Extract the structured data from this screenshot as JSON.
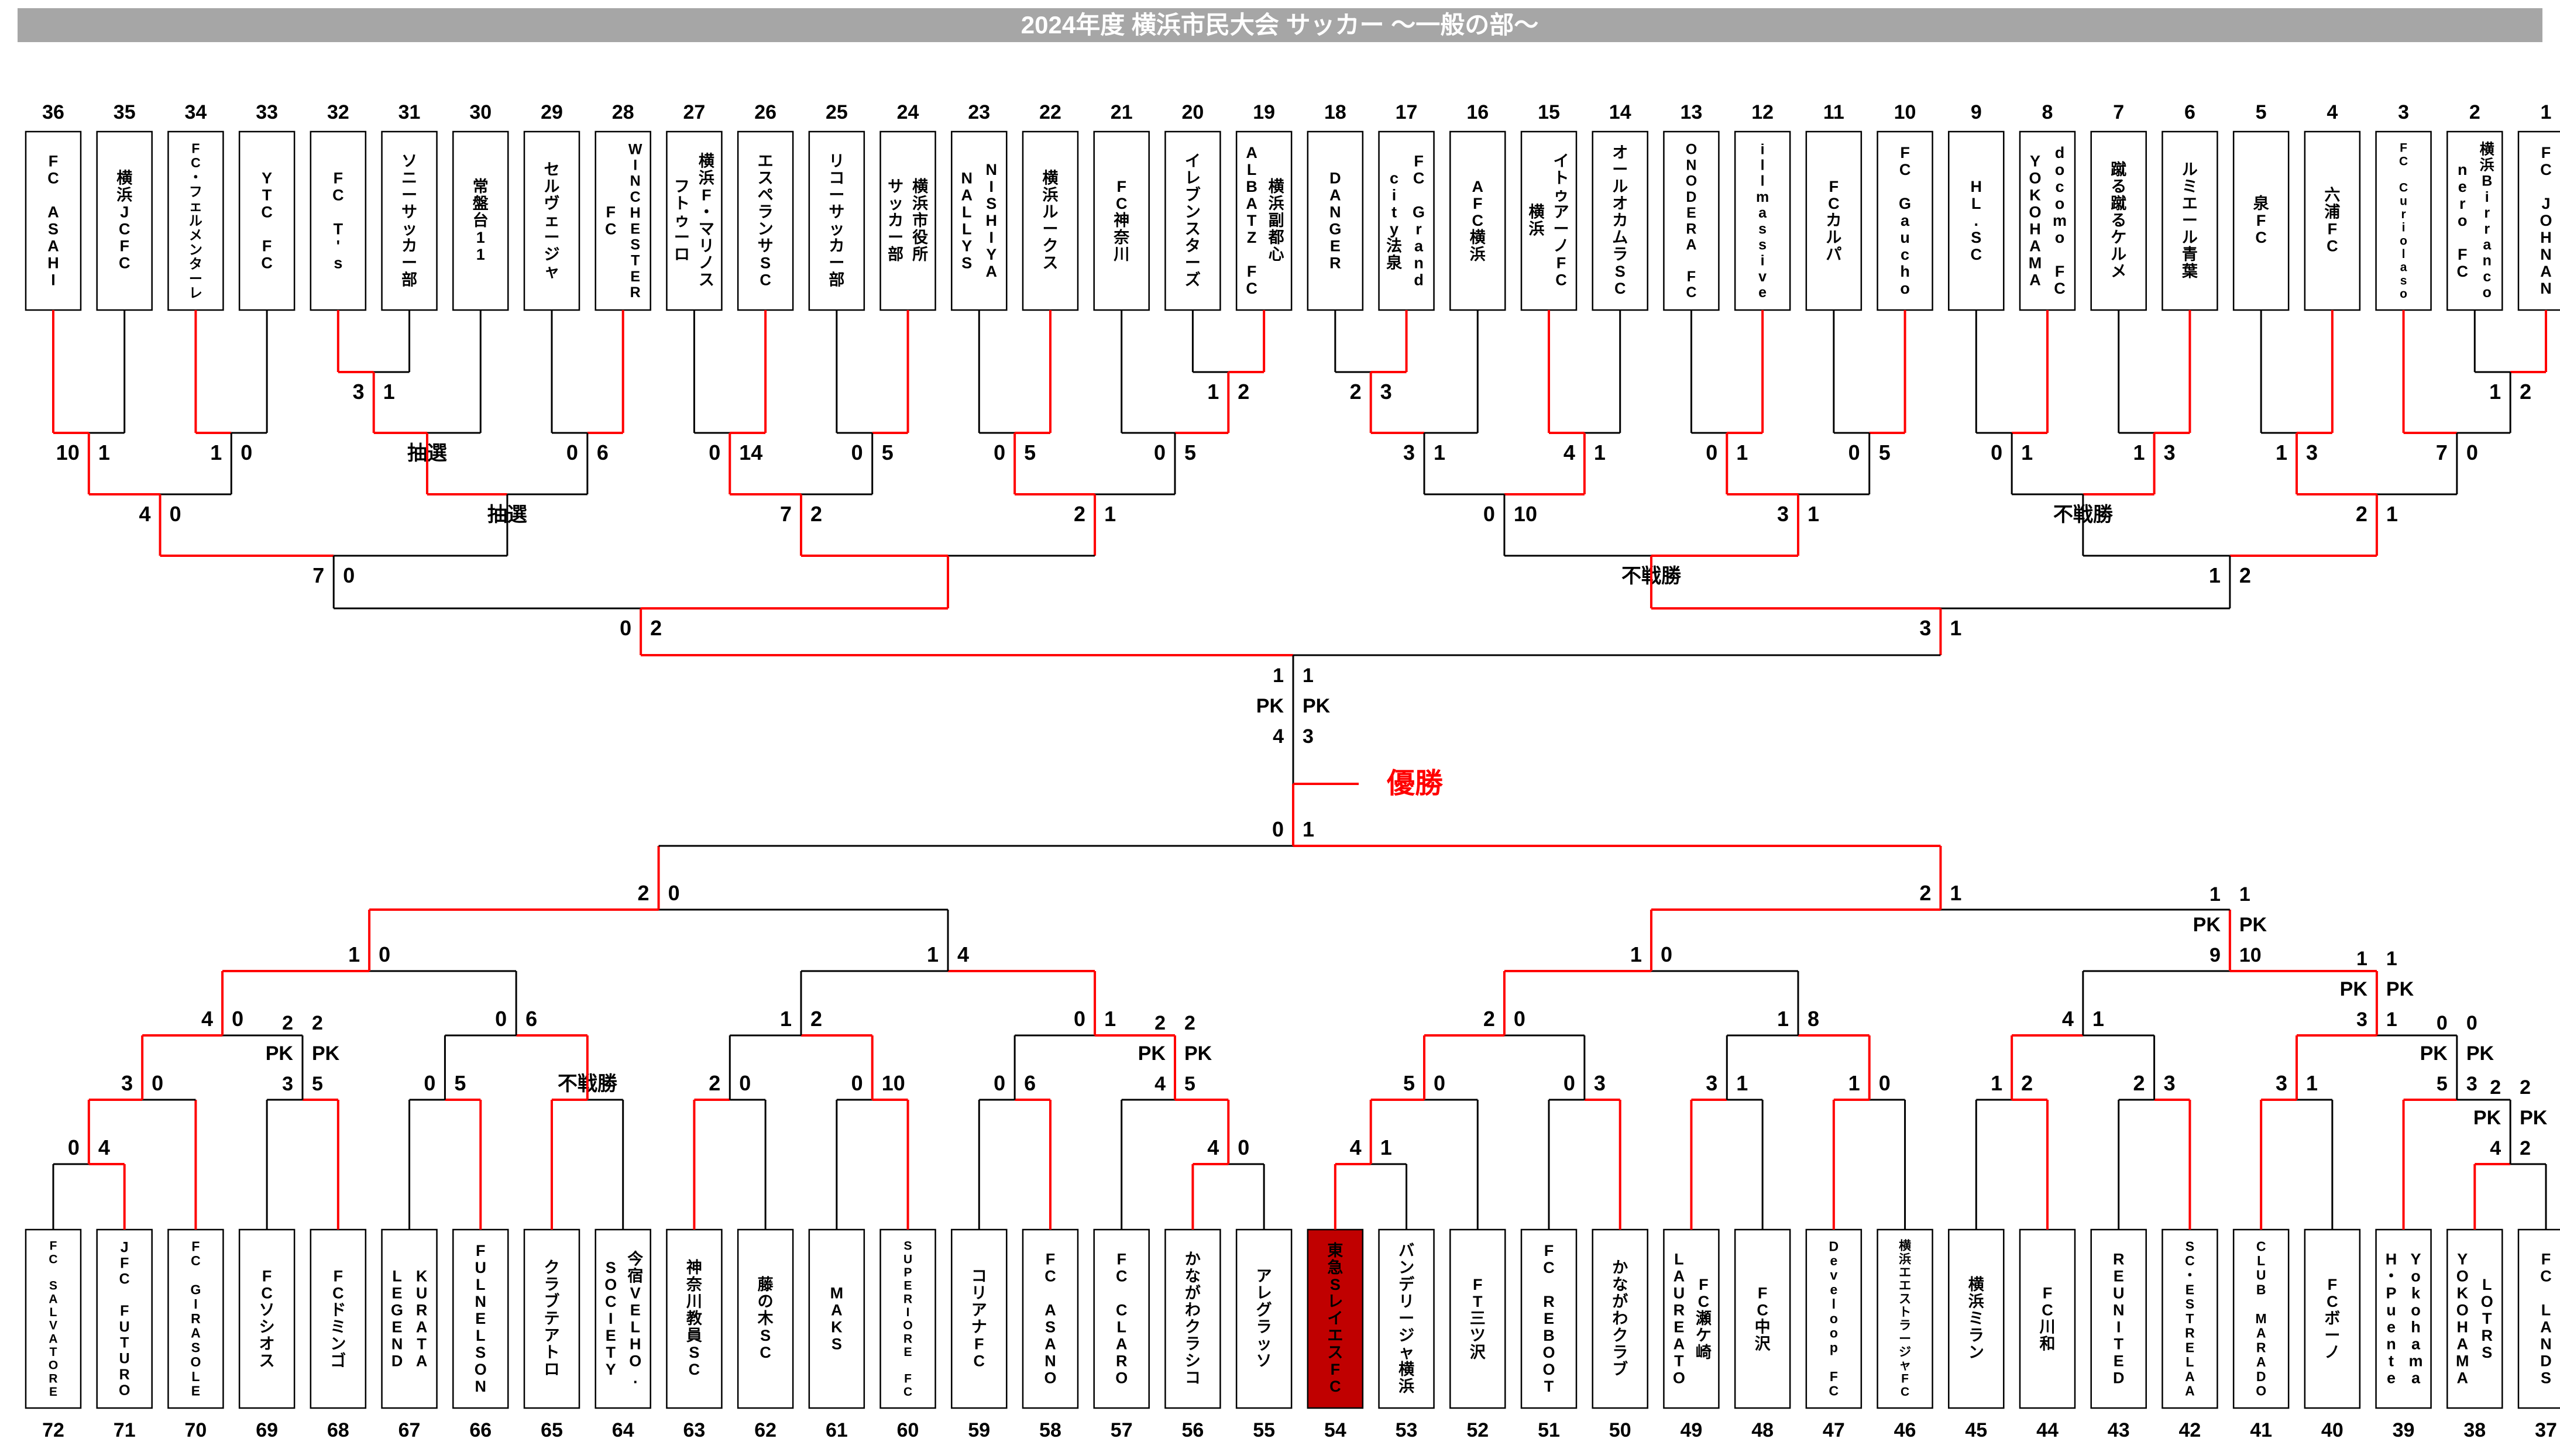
{
  "title": "2024年度 横浜市民大会 サッカー ～一般の部～",
  "champion_label": "優勝",
  "champion_team": "東急SレイエスFC",
  "labels": {
    "lottery": "抽選",
    "walkover": "不戦勝",
    "pk": "PK"
  },
  "colors": {
    "title_bar": "#a6a6a6",
    "title_text": "#ffffff",
    "line": "#000000",
    "win_path": "#ff0000",
    "champion_box": "#c00000",
    "champion_box_text": "#ffffff",
    "box_fill": "#ffffff",
    "text": "#000000"
  },
  "top_half": {
    "teams": [
      {
        "num": 36,
        "lines": [
          "FC ASAHI"
        ]
      },
      {
        "num": 35,
        "lines": [
          "横浜JCFC"
        ]
      },
      {
        "num": 34,
        "lines": [
          "FC・フェルメンターレ"
        ]
      },
      {
        "num": 33,
        "lines": [
          "YTC FC"
        ]
      },
      {
        "num": 32,
        "lines": [
          "FC T's"
        ]
      },
      {
        "num": 31,
        "lines": [
          "ソニーサッカー部"
        ]
      },
      {
        "num": 30,
        "lines": [
          "常盤台11"
        ]
      },
      {
        "num": 29,
        "lines": [
          "セルヴェージャ"
        ]
      },
      {
        "num": 28,
        "lines": [
          "WINCHESTER",
          "FC"
        ]
      },
      {
        "num": 27,
        "lines": [
          "横浜F・マリノス",
          "フトゥーロ"
        ]
      },
      {
        "num": 26,
        "lines": [
          "エスペランサSC"
        ]
      },
      {
        "num": 25,
        "lines": [
          "リコーサッカー部"
        ]
      },
      {
        "num": 24,
        "lines": [
          "横浜市役所",
          "サッカー部"
        ]
      },
      {
        "num": 23,
        "lines": [
          "NISHIYA",
          "NALLYS"
        ]
      },
      {
        "num": 22,
        "lines": [
          "横浜ルークス"
        ]
      },
      {
        "num": 21,
        "lines": [
          "FC神奈川"
        ]
      },
      {
        "num": 20,
        "lines": [
          "イレブンスターズ"
        ]
      },
      {
        "num": 19,
        "lines": [
          "横浜副都心",
          "ALBATZ FC"
        ]
      },
      {
        "num": 18,
        "lines": [
          "DANGER"
        ]
      },
      {
        "num": 17,
        "lines": [
          "FC Grand",
          "city法泉"
        ]
      },
      {
        "num": 16,
        "lines": [
          "AFC横浜"
        ]
      },
      {
        "num": 15,
        "lines": [
          "イトゥアーノFC",
          "横浜"
        ]
      },
      {
        "num": 14,
        "lines": [
          "オールオカムラSC"
        ]
      },
      {
        "num": 13,
        "lines": [
          "ONODERA FC"
        ]
      },
      {
        "num": 12,
        "lines": [
          "illmassive"
        ]
      },
      {
        "num": 11,
        "lines": [
          "FCカルパ"
        ]
      },
      {
        "num": 10,
        "lines": [
          "FC Gaucho"
        ]
      },
      {
        "num": 9,
        "lines": [
          "HL.SC"
        ]
      },
      {
        "num": 8,
        "lines": [
          "docomo FC",
          "YOKOHAMA"
        ]
      },
      {
        "num": 7,
        "lines": [
          "蹴る蹴るケルメ"
        ]
      },
      {
        "num": 6,
        "lines": [
          "ルミエール青葉"
        ]
      },
      {
        "num": 5,
        "lines": [
          "泉FC"
        ]
      },
      {
        "num": 4,
        "lines": [
          "六浦FC"
        ]
      },
      {
        "num": 3,
        "lines": [
          "FC Curiolaso"
        ]
      },
      {
        "num": 2,
        "lines": [
          "横浜Birranco",
          "nero FC"
        ]
      },
      {
        "num": 1,
        "lines": [
          "FC JOHNAN"
        ]
      }
    ],
    "rounds": {
      "playin": [
        {
          "l": "T32",
          "r": "T31",
          "sl": "3",
          "sr": "1",
          "w": "L"
        },
        {
          "l": "T20",
          "r": "T19",
          "sl": "1",
          "sr": "2",
          "w": "R"
        },
        {
          "l": "T18",
          "r": "T17",
          "sl": "2",
          "sr": "3",
          "w": "R"
        },
        {
          "l": "T2",
          "r": "T1",
          "sl": "1",
          "sr": "2",
          "w": "R"
        }
      ],
      "r32": [
        {
          "l": "T36",
          "r": "T35",
          "sl": "10",
          "sr": "1",
          "w": "L"
        },
        {
          "l": "T34",
          "r": "T33",
          "sl": "1",
          "sr": "0",
          "w": "L"
        },
        {
          "l": "P0",
          "r": "T30",
          "label": "抽選",
          "w": "L"
        },
        {
          "l": "T29",
          "r": "T28",
          "sl": "0",
          "sr": "6",
          "w": "R"
        },
        {
          "l": "T27",
          "r": "T26",
          "sl": "0",
          "sr": "14",
          "w": "R"
        },
        {
          "l": "T25",
          "r": "T24",
          "sl": "0",
          "sr": "5",
          "w": "R"
        },
        {
          "l": "T23",
          "r": "T22",
          "sl": "0",
          "sr": "5",
          "w": "R"
        },
        {
          "l": "T21",
          "r": "P1",
          "sl": "0",
          "sr": "5",
          "w": "R"
        },
        {
          "l": "P2",
          "r": "T16",
          "sl": "3",
          "sr": "1",
          "w": "L"
        },
        {
          "l": "T15",
          "r": "T14",
          "sl": "4",
          "sr": "1",
          "w": "L"
        },
        {
          "l": "T13",
          "r": "T12",
          "sl": "0",
          "sr": "1",
          "w": "R"
        },
        {
          "l": "T11",
          "r": "T10",
          "sl": "0",
          "sr": "5",
          "w": "R"
        },
        {
          "l": "T9",
          "r": "T8",
          "sl": "0",
          "sr": "1",
          "w": "R"
        },
        {
          "l": "T7",
          "r": "T6",
          "sl": "1",
          "sr": "3",
          "w": "R"
        },
        {
          "l": "T5",
          "r": "T4",
          "sl": "1",
          "sr": "3",
          "w": "R"
        },
        {
          "l": "T3",
          "r": "P3",
          "sl": "7",
          "sr": "0",
          "w": "L"
        }
      ],
      "r16": [
        {
          "l": "B0",
          "r": "B1",
          "sl": "4",
          "sr": "0",
          "w": "L"
        },
        {
          "l": "B2",
          "r": "B3",
          "label": "抽選",
          "w": "L"
        },
        {
          "l": "B4",
          "r": "B5",
          "sl": "7",
          "sr": "2",
          "w": "L"
        },
        {
          "l": "B6",
          "r": "B7",
          "sl": "2",
          "sr": "1",
          "w": "L"
        },
        {
          "l": "B8",
          "r": "B9",
          "sl": "0",
          "sr": "10",
          "w": "R"
        },
        {
          "l": "B10",
          "r": "B11",
          "sl": "3",
          "sr": "1",
          "w": "L"
        },
        {
          "l": "B12",
          "r": "B13",
          "label": "不戦勝",
          "w": "R"
        },
        {
          "l": "B14",
          "r": "B15",
          "sl": "2",
          "sr": "1",
          "w": "L"
        }
      ],
      "qf": [
        {
          "l": "C0",
          "r": "C1",
          "sl": "7",
          "sr": "0",
          "w": "L"
        },
        {
          "l": "C2",
          "r": "C3",
          "w": "L"
        },
        {
          "l": "C4",
          "r": "C5",
          "label": "不戦勝",
          "w": "R"
        },
        {
          "l": "C6",
          "r": "C7",
          "sl": "1",
          "sr": "2",
          "w": "R"
        }
      ],
      "sf": [
        {
          "l": "D0",
          "r": "D1",
          "sl": "0",
          "sr": "2",
          "w": "R"
        },
        {
          "l": "D2",
          "r": "D3",
          "sl": "3",
          "sr": "1",
          "w": "L"
        }
      ]
    },
    "final": {
      "l": "E0",
      "r": "E1",
      "sl": "1",
      "sr": "1",
      "pkl": "4",
      "pkr": "3",
      "w": "L"
    },
    "red_overrides": {
      "qf": [
        {
          "m": 1,
          "side": "R"
        }
      ],
      "final": [
        {
          "side": "R"
        }
      ]
    },
    "team_feeder_red_overrides": []
  },
  "bottom_half": {
    "teams": [
      {
        "num": 72,
        "lines": [
          "FC SALVATORE"
        ]
      },
      {
        "num": 71,
        "lines": [
          "JFC FUTURO"
        ]
      },
      {
        "num": 70,
        "lines": [
          "FC GIRASOLE"
        ]
      },
      {
        "num": 69,
        "lines": [
          "FCソシオス"
        ]
      },
      {
        "num": 68,
        "lines": [
          "FCドミンゴ"
        ]
      },
      {
        "num": 67,
        "lines": [
          "KURATA",
          "LEGEND"
        ]
      },
      {
        "num": 66,
        "lines": [
          "FULNELSON"
        ]
      },
      {
        "num": 65,
        "lines": [
          "クラブテアトロ"
        ]
      },
      {
        "num": 64,
        "lines": [
          "今宿VELHO.",
          "SOCIETY"
        ]
      },
      {
        "num": 63,
        "lines": [
          "神奈川教員SC"
        ]
      },
      {
        "num": 62,
        "lines": [
          "藤の木SC"
        ]
      },
      {
        "num": 61,
        "lines": [
          "MAKS"
        ]
      },
      {
        "num": 60,
        "lines": [
          "SUPERIORE FC"
        ]
      },
      {
        "num": 59,
        "lines": [
          "コリアナFC"
        ]
      },
      {
        "num": 58,
        "lines": [
          "FC ASANO"
        ]
      },
      {
        "num": 57,
        "lines": [
          "FC CLARO"
        ]
      },
      {
        "num": 56,
        "lines": [
          "かながわクラシコ"
        ]
      },
      {
        "num": 55,
        "lines": [
          "アレグラッソ"
        ]
      },
      {
        "num": 54,
        "lines": [
          "東急SレイエスFC"
        ],
        "highlight": true
      },
      {
        "num": 53,
        "lines": [
          "バンデリージャ横浜"
        ]
      },
      {
        "num": 52,
        "lines": [
          "FT三ツ沢"
        ]
      },
      {
        "num": 51,
        "lines": [
          "FC REBOOT"
        ]
      },
      {
        "num": 50,
        "lines": [
          "かながわクラブ"
        ]
      },
      {
        "num": 49,
        "lines": [
          "FC瀬ケ崎",
          "LAUREATO"
        ]
      },
      {
        "num": 48,
        "lines": [
          "FC中沢"
        ]
      },
      {
        "num": 47,
        "lines": [
          "Develoop FC"
        ]
      },
      {
        "num": 46,
        "lines": [
          "横浜エエストラージャFC"
        ]
      },
      {
        "num": 45,
        "lines": [
          "横浜ミラン"
        ]
      },
      {
        "num": 44,
        "lines": [
          "FC川和"
        ]
      },
      {
        "num": 43,
        "lines": [
          "REUNITED"
        ]
      },
      {
        "num": 42,
        "lines": [
          "SC・ESTRELAA"
        ]
      },
      {
        "num": 41,
        "lines": [
          "CLUB MARADO"
        ]
      },
      {
        "num": 40,
        "lines": [
          "FCボーノ"
        ]
      },
      {
        "num": 39,
        "lines": [
          "Yokohama",
          "H・Puente"
        ]
      },
      {
        "num": 38,
        "lines": [
          "LOTRS",
          "YOKOHAMA"
        ]
      },
      {
        "num": 37,
        "lines": [
          "FC LANDS"
        ]
      }
    ],
    "rounds": {
      "playin": [
        {
          "l": "T72",
          "r": "T71",
          "sl": "0",
          "sr": "4",
          "w": "R"
        },
        {
          "l": "T56",
          "r": "T55",
          "sl": "4",
          "sr": "0",
          "w": "L"
        },
        {
          "l": "T54",
          "r": "T53",
          "sl": "4",
          "sr": "1",
          "w": "L"
        },
        {
          "l": "T38",
          "r": "T37",
          "sl": "2",
          "sr": "2",
          "pkl": "4",
          "pkr": "2",
          "w": "L"
        }
      ],
      "r32": [
        {
          "l": "P0",
          "r": "T70",
          "sl": "3",
          "sr": "0",
          "w": "L"
        },
        {
          "l": "T69",
          "r": "T68",
          "sl": "2",
          "sr": "2",
          "pkl": "3",
          "pkr": "5",
          "w": "R"
        },
        {
          "l": "T67",
          "r": "T66",
          "sl": "0",
          "sr": "5",
          "w": "R"
        },
        {
          "l": "T65",
          "r": "T64",
          "label": "不戦勝",
          "w": "L"
        },
        {
          "l": "T63",
          "r": "T62",
          "sl": "2",
          "sr": "0",
          "w": "L"
        },
        {
          "l": "T61",
          "r": "T60",
          "sl": "0",
          "sr": "10",
          "w": "R"
        },
        {
          "l": "T59",
          "r": "T58",
          "sl": "0",
          "sr": "6",
          "w": "R"
        },
        {
          "l": "T57",
          "r": "P1",
          "sl": "2",
          "sr": "2",
          "pkl": "4",
          "pkr": "5",
          "w": "R"
        },
        {
          "l": "P2",
          "r": "T52",
          "sl": "5",
          "sr": "0",
          "w": "L"
        },
        {
          "l": "T51",
          "r": "T50",
          "sl": "0",
          "sr": "3",
          "w": "R"
        },
        {
          "l": "T49",
          "r": "T48",
          "sl": "3",
          "sr": "1",
          "w": "L"
        },
        {
          "l": "T47",
          "r": "T46",
          "sl": "1",
          "sr": "0",
          "w": "L"
        },
        {
          "l": "T45",
          "r": "T44",
          "sl": "1",
          "sr": "2",
          "w": "R"
        },
        {
          "l": "T43",
          "r": "T42",
          "sl": "2",
          "sr": "3",
          "w": "R"
        },
        {
          "l": "T41",
          "r": "T40",
          "sl": "3",
          "sr": "1",
          "w": "L"
        },
        {
          "l": "T39",
          "r": "P3",
          "sl": "0",
          "sr": "0",
          "pkl": "5",
          "pkr": "3",
          "w": "L"
        }
      ],
      "r16": [
        {
          "l": "B0",
          "r": "B1",
          "sl": "4",
          "sr": "0",
          "w": "L"
        },
        {
          "l": "B2",
          "r": "B3",
          "sl": "0",
          "sr": "6",
          "w": "R"
        },
        {
          "l": "B4",
          "r": "B5",
          "sl": "1",
          "sr": "2",
          "w": "R"
        },
        {
          "l": "B6",
          "r": "B7",
          "sl": "0",
          "sr": "1",
          "w": "R"
        },
        {
          "l": "B8",
          "r": "B9",
          "sl": "2",
          "sr": "0",
          "w": "L"
        },
        {
          "l": "B10",
          "r": "B11",
          "sl": "1",
          "sr": "8",
          "w": "R"
        },
        {
          "l": "B12",
          "r": "B13",
          "sl": "4",
          "sr": "1",
          "w": "L"
        },
        {
          "l": "B14",
          "r": "B15",
          "sl": "1",
          "sr": "1",
          "pkl": "3",
          "pkr": "1",
          "w": "L"
        }
      ],
      "qf": [
        {
          "l": "C0",
          "r": "C1",
          "sl": "1",
          "sr": "0",
          "w": "L"
        },
        {
          "l": "C2",
          "r": "C3",
          "sl": "1",
          "sr": "4",
          "w": "R"
        },
        {
          "l": "C4",
          "r": "C5",
          "sl": "1",
          "sr": "0",
          "w": "L"
        },
        {
          "l": "C6",
          "r": "C7",
          "sl": "1",
          "sr": "1",
          "pkl": "9",
          "pkr": "10",
          "w": "R"
        }
      ],
      "sf": [
        {
          "l": "D0",
          "r": "D1",
          "sl": "2",
          "sr": "0",
          "w": "L"
        },
        {
          "l": "D2",
          "r": "D3",
          "sl": "2",
          "sr": "1",
          "w": "L"
        }
      ]
    },
    "final": {
      "l": "E0",
      "r": "E1",
      "sl": "0",
      "sr": "1",
      "w": "R"
    },
    "red_overrides": {
      "sf": [
        {
          "m": 1,
          "side": "R"
        }
      ],
      "final": [
        {
          "side": "L"
        }
      ]
    },
    "team_feeder_red_overrides": [
      70
    ]
  }
}
